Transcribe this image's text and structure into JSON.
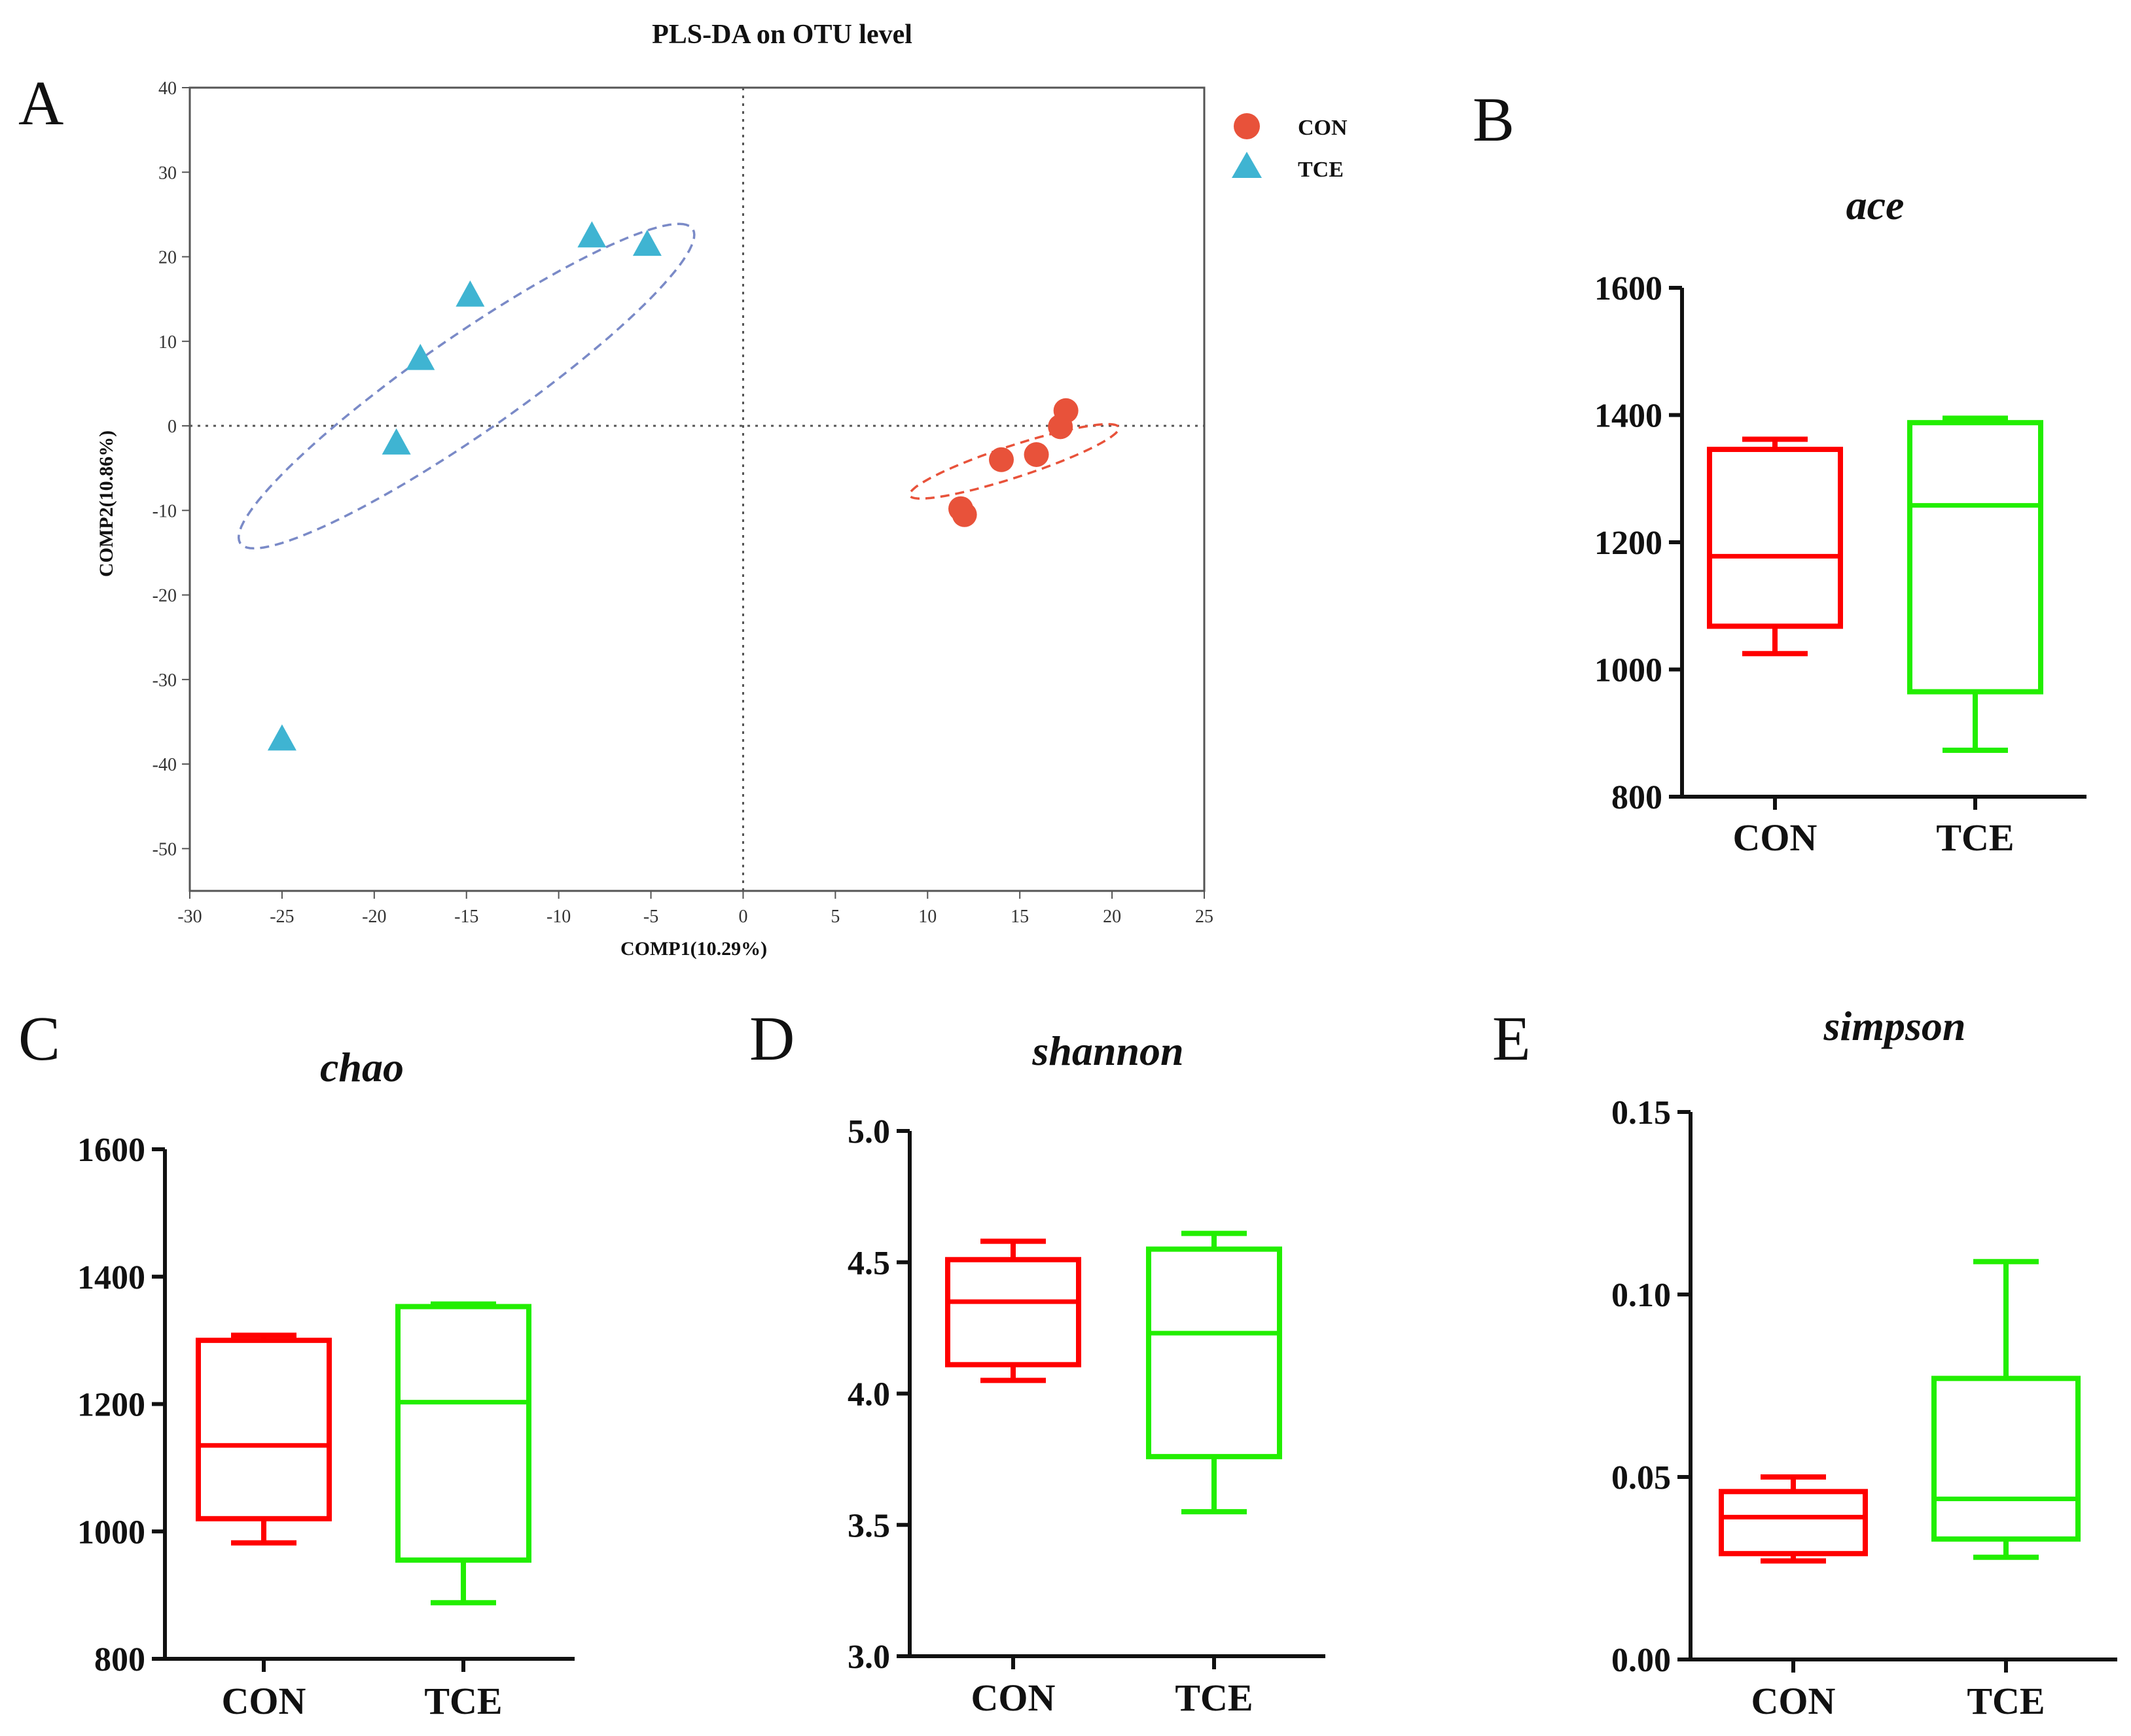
{
  "chart_data": [
    {
      "panel": "A",
      "type": "scatter",
      "title": "PLS-DA on OTU level",
      "xlabel": "COMP1(10.29%)",
      "ylabel": "COMP2(10.86%)",
      "xlim": [
        -30,
        25
      ],
      "ylim": [
        -55,
        40
      ],
      "xticks": [
        -30,
        -25,
        -20,
        -15,
        -10,
        -5,
        0,
        5,
        10,
        15,
        20,
        25
      ],
      "yticks": [
        40,
        30,
        20,
        10,
        0,
        -10,
        -20,
        -30,
        -40,
        -50
      ],
      "legend_position": "top-right",
      "series": [
        {
          "name": "CON",
          "marker": "circle",
          "color": "#e8523a",
          "points": [
            [
              11.8,
              -9.8
            ],
            [
              12.0,
              -10.5
            ],
            [
              14.0,
              -4.0
            ],
            [
              15.9,
              -3.4
            ],
            [
              17.2,
              -0.1
            ],
            [
              17.5,
              1.8
            ]
          ],
          "ellipse": {
            "cx": 14.7,
            "cy": -4.2,
            "rx": 7.0,
            "ry": 1.6,
            "angle_deg": 37,
            "color": "#e8523a"
          }
        },
        {
          "name": "TCE",
          "marker": "triangle",
          "color": "#3fb4d2",
          "points": [
            [
              -25.0,
              -37.0
            ],
            [
              -18.8,
              -2.0
            ],
            [
              -17.5,
              8.0
            ],
            [
              -14.8,
              15.5
            ],
            [
              -8.2,
              22.5
            ],
            [
              -5.2,
              21.5
            ]
          ],
          "ellipse": {
            "cx": -15.0,
            "cy": 4.7,
            "rx": 22.5,
            "ry": 3.8,
            "angle_deg": 58,
            "color": "#7a8ac7"
          }
        }
      ]
    },
    {
      "panel": "B",
      "type": "box",
      "title": "ace",
      "categories": [
        "CON",
        "TCE"
      ],
      "ylim": [
        800,
        1600
      ],
      "yticks": [
        800,
        1000,
        1200,
        1400,
        1600
      ],
      "series": [
        {
          "name": "CON",
          "color": "#ff0000",
          "min": 1025,
          "q1": 1068,
          "median": 1178,
          "q3": 1346,
          "max": 1362
        },
        {
          "name": "TCE",
          "color": "#22ee00",
          "min": 873,
          "q1": 965,
          "median": 1258,
          "q3": 1388,
          "max": 1395
        }
      ]
    },
    {
      "panel": "C",
      "type": "box",
      "title": "chao",
      "categories": [
        "CON",
        "TCE"
      ],
      "ylim": [
        800,
        1600
      ],
      "yticks": [
        800,
        1000,
        1200,
        1400,
        1600
      ],
      "series": [
        {
          "name": "CON",
          "color": "#ff0000",
          "min": 982,
          "q1": 1020,
          "median": 1135,
          "q3": 1300,
          "max": 1308
        },
        {
          "name": "TCE",
          "color": "#22ee00",
          "min": 888,
          "q1": 955,
          "median": 1203,
          "q3": 1353,
          "max": 1357
        }
      ]
    },
    {
      "panel": "D",
      "type": "box",
      "title": "shannon",
      "categories": [
        "CON",
        "TCE"
      ],
      "ylim": [
        3.0,
        5.0
      ],
      "yticks": [
        3.0,
        3.5,
        4.0,
        4.5,
        5.0
      ],
      "tick_decimals": 1,
      "series": [
        {
          "name": "CON",
          "color": "#ff0000",
          "min": 4.05,
          "q1": 4.11,
          "median": 4.35,
          "q3": 4.51,
          "max": 4.58
        },
        {
          "name": "TCE",
          "color": "#22ee00",
          "min": 3.55,
          "q1": 3.76,
          "median": 4.23,
          "q3": 4.55,
          "max": 4.61
        }
      ]
    },
    {
      "panel": "E",
      "type": "box",
      "title": "simpson",
      "categories": [
        "CON",
        "TCE"
      ],
      "ylim": [
        0.0,
        0.15
      ],
      "yticks": [
        0.0,
        0.05,
        0.1,
        0.15
      ],
      "tick_decimals": 2,
      "series": [
        {
          "name": "CON",
          "color": "#ff0000",
          "min": 0.027,
          "q1": 0.029,
          "median": 0.039,
          "q3": 0.046,
          "max": 0.05
        },
        {
          "name": "TCE",
          "color": "#22ee00",
          "min": 0.028,
          "q1": 0.033,
          "median": 0.044,
          "q3": 0.077,
          "max": 0.109
        }
      ]
    }
  ]
}
